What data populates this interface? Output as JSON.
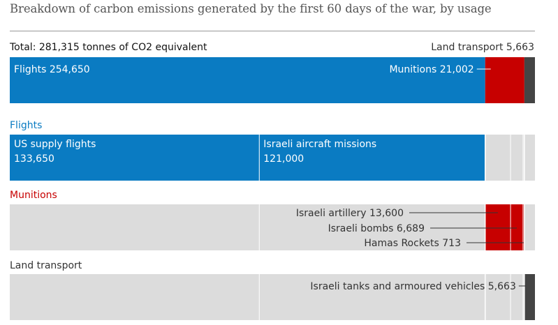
{
  "header": {
    "title": "Breakdown of carbon emissions generated by the first 60 days of the war, by usage",
    "total_label": "Total: 281,315 tonnes of CO2 equivalent",
    "land_transport_label": "Land transport 5,663"
  },
  "colors": {
    "flights": "#0a7bc2",
    "munitions": "#c70000",
    "land": "#444444",
    "background_segment": "#dcdcdc"
  },
  "sections": {
    "flights": "Flights",
    "munitions": "Munitions",
    "land": "Land transport"
  },
  "chart_data": {
    "type": "bar",
    "total": 281315,
    "overview": [
      {
        "name": "Flights",
        "label": "Flights 254,650",
        "value": 254650
      },
      {
        "name": "Munitions",
        "label": "Munitions 21,002",
        "value": 21002
      },
      {
        "name": "Land transport",
        "value": 5663
      }
    ],
    "breakdown": [
      {
        "name": "US supply flights",
        "value_text": "133,650",
        "value": 133650,
        "group": "Flights"
      },
      {
        "name": "Israeli aircraft missions",
        "value_text": "121,000",
        "value": 121000,
        "group": "Flights"
      },
      {
        "name": "Israeli artillery",
        "label": "Israeli artillery 13,600",
        "value": 13600,
        "group": "Munitions"
      },
      {
        "name": "Israeli bombs",
        "label": "Israeli bombs 6,689",
        "value": 6689,
        "group": "Munitions"
      },
      {
        "name": "Hamas Rockets",
        "label": "Hamas Rockets 713",
        "value": 713,
        "group": "Munitions"
      },
      {
        "name": "Israeli tanks and armoured vehicles",
        "label": "Israeli tanks and armoured vehicles 5,663",
        "value": 5663,
        "group": "Land transport"
      }
    ]
  }
}
